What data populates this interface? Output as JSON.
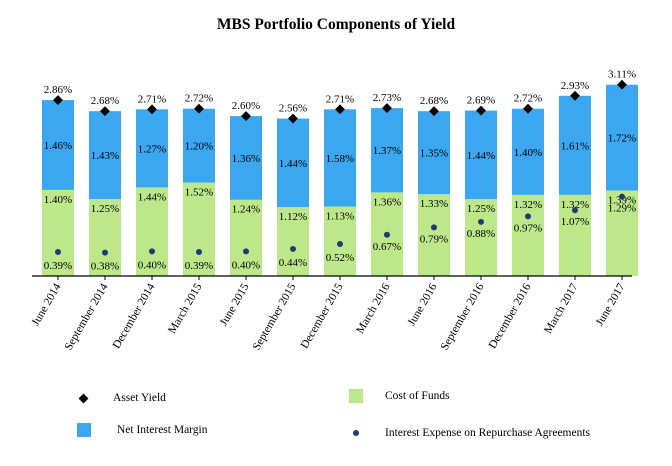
{
  "chart_data": {
    "type": "bar",
    "title": "MBS Portfolio Components of Yield",
    "categories": [
      "June 2014",
      "September 2014",
      "December 2014",
      "March 2015",
      "June 2015",
      "September 2015",
      "December 2015",
      "March 2016",
      "June 2016",
      "September 2016",
      "December 2016",
      "March 2017",
      "June 2017"
    ],
    "series": [
      {
        "name": "Cost of Funds",
        "values": [
          1.4,
          1.25,
          1.44,
          1.52,
          1.24,
          1.12,
          1.13,
          1.36,
          1.33,
          1.25,
          1.32,
          1.32,
          1.39
        ],
        "labels": [
          "1.40%",
          "1.25%",
          "1.44%",
          "1.52%",
          "1.24%",
          "1.12%",
          "1.13%",
          "1.36%",
          "1.33%",
          "1.25%",
          "1.32%",
          "1.32%",
          "1.39%"
        ]
      },
      {
        "name": "Net Interest Margin",
        "values": [
          1.46,
          1.43,
          1.27,
          1.2,
          1.36,
          1.44,
          1.58,
          1.37,
          1.35,
          1.44,
          1.4,
          1.61,
          1.72
        ],
        "labels": [
          "1.46%",
          "1.43%",
          "1.27%",
          "1.20%",
          "1.36%",
          "1.44%",
          "1.58%",
          "1.37%",
          "1.35%",
          "1.44%",
          "1.40%",
          "1.61%",
          "1.72%"
        ]
      },
      {
        "name": "Asset Yield",
        "values": [
          2.86,
          2.68,
          2.71,
          2.72,
          2.6,
          2.56,
          2.71,
          2.73,
          2.68,
          2.69,
          2.72,
          2.93,
          3.11
        ],
        "labels": [
          "2.86%",
          "2.68%",
          "2.71%",
          "2.72%",
          "2.60%",
          "2.56%",
          "2.71%",
          "2.73%",
          "2.68%",
          "2.69%",
          "2.72%",
          "2.93%",
          "3.11%"
        ]
      },
      {
        "name": "Interest Expense on Repurchase Agreements",
        "values": [
          0.39,
          0.38,
          0.4,
          0.39,
          0.4,
          0.44,
          0.52,
          0.67,
          0.79,
          0.88,
          0.97,
          1.07,
          1.29
        ],
        "labels": [
          "0.39%",
          "0.38%",
          "0.40%",
          "0.39%",
          "0.40%",
          "0.44%",
          "0.52%",
          "0.67%",
          "0.79%",
          "0.88%",
          "0.97%",
          "1.07%",
          "1.29%"
        ]
      }
    ],
    "ylim": [
      0,
      3.2
    ],
    "colors": {
      "cost_of_funds": "#bde88a",
      "net_interest_margin": "#3ba7f0",
      "asset_yield": "#000000",
      "repo_expense": "#1f3b73"
    }
  },
  "legend": {
    "asset_yield": "Asset Yield",
    "cost_of_funds": "Cost of Funds",
    "net_interest_margin": "Net Interest Margin",
    "repo_expense": "Interest Expense on Repurchase Agreements"
  }
}
